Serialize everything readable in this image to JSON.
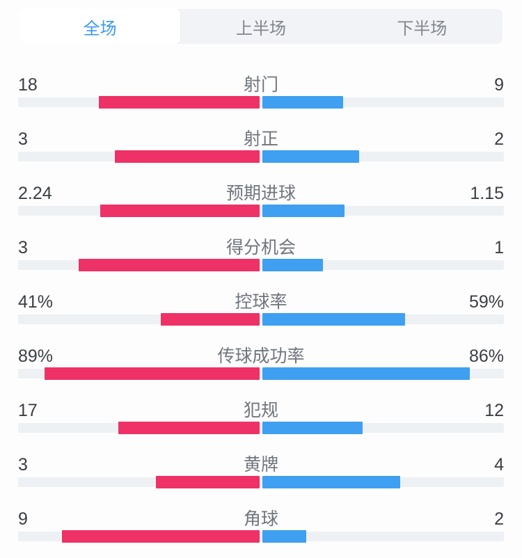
{
  "tabs": {
    "items": [
      {
        "label": "全场",
        "active": true
      },
      {
        "label": "上半场",
        "active": false
      },
      {
        "label": "下半场",
        "active": false
      }
    ]
  },
  "stats": {
    "rows": [
      {
        "label": "射门",
        "home": "18",
        "away": "9"
      },
      {
        "label": "射正",
        "home": "3",
        "away": "2"
      },
      {
        "label": "预期进球",
        "home": "2.24",
        "away": "1.15"
      },
      {
        "label": "得分机会",
        "home": "3",
        "away": "1"
      },
      {
        "label": "控球率",
        "home": "41%",
        "away": "59%"
      },
      {
        "label": "传球成功率",
        "home": "89%",
        "away": "86%"
      },
      {
        "label": "犯规",
        "home": "17",
        "away": "12"
      },
      {
        "label": "黄牌",
        "home": "3",
        "away": "4"
      },
      {
        "label": "角球",
        "home": "9",
        "away": "2"
      }
    ]
  },
  "colors": {
    "home_bar": "#ee3166",
    "away_bar": "#3f9ff0",
    "bar_track": "#eef1f4",
    "tab_bg": "#f1f3f6",
    "tab_active_text": "#3b9af2",
    "tab_text": "#82868d",
    "value_text": "#3a3e44",
    "label_text": "#6f757c"
  }
}
